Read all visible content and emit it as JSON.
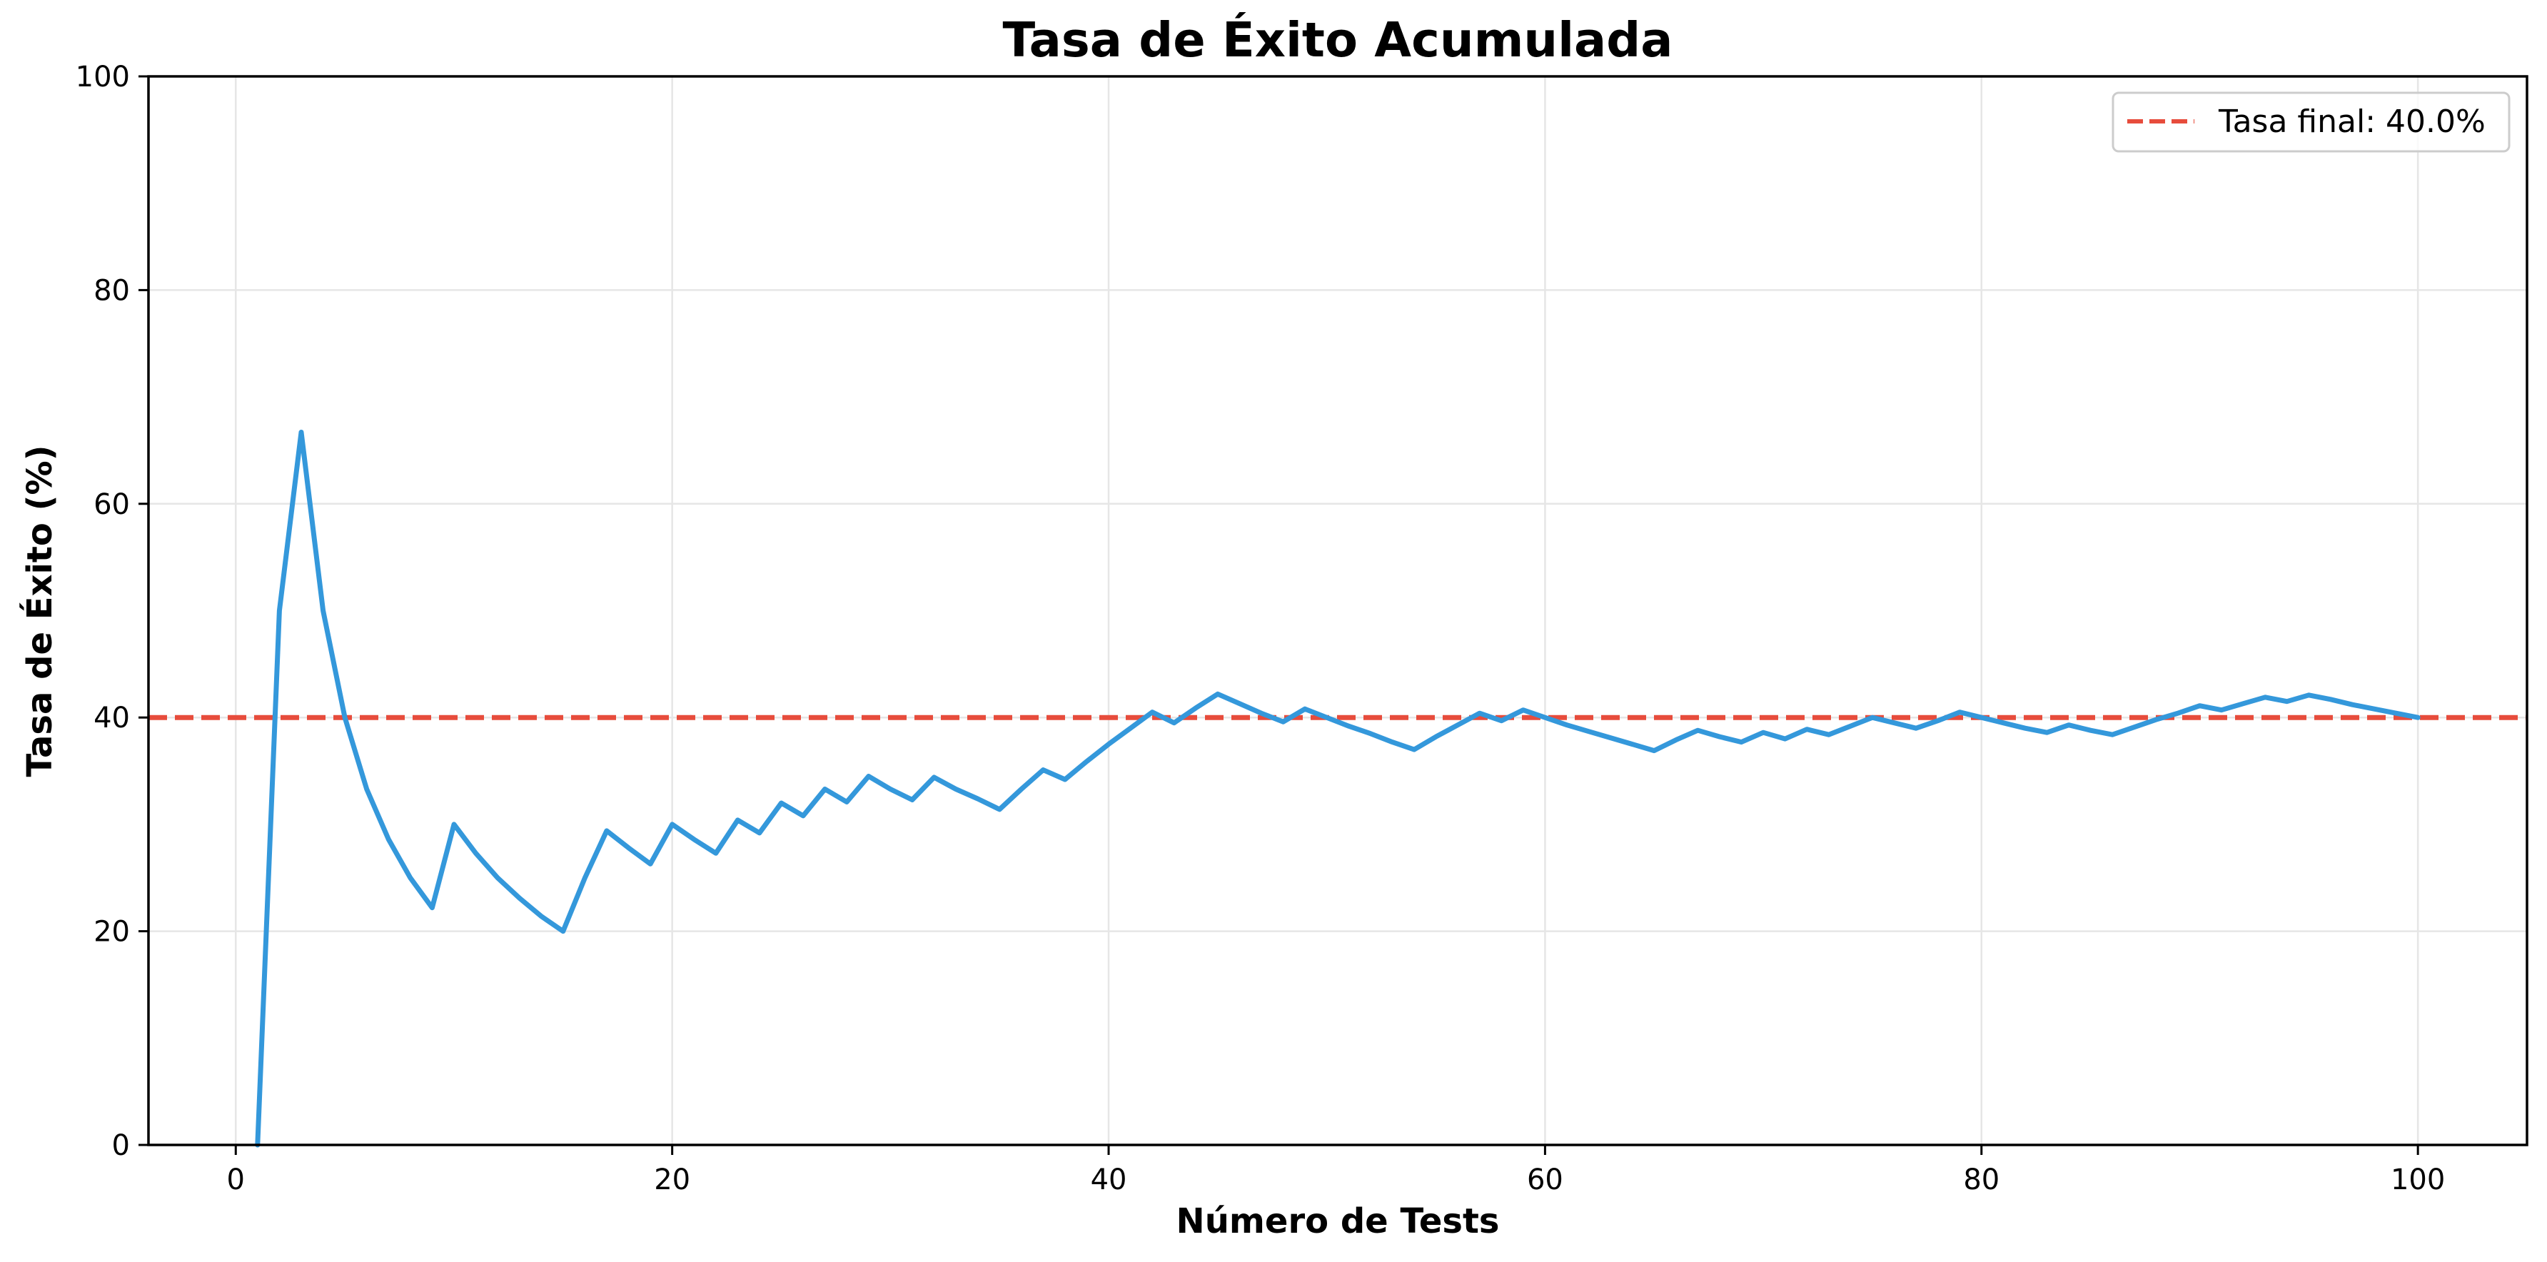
{
  "chart_data": {
    "type": "line",
    "title": "Tasa de Éxito Acumulada",
    "xlabel": "Número de Tests",
    "ylabel": "Tasa de Éxito (%)",
    "xlim": [
      -4,
      105
    ],
    "ylim": [
      0,
      100
    ],
    "xticks": [
      0,
      20,
      40,
      60,
      80,
      100
    ],
    "xtick_labels": [
      "0",
      "20",
      "40",
      "60",
      "80",
      "100"
    ],
    "yticks": [
      0,
      20,
      40,
      60,
      80,
      100
    ],
    "ytick_labels": [
      "0",
      "20",
      "40",
      "60",
      "80",
      "100"
    ],
    "grid": true,
    "legend_position": "top-right",
    "series": [
      {
        "color": "#3498db",
        "x": [
          1,
          2,
          3,
          4,
          5,
          6,
          7,
          8,
          9,
          10,
          11,
          12,
          13,
          14,
          15,
          16,
          17,
          18,
          19,
          20,
          21,
          22,
          23,
          24,
          25,
          26,
          27,
          28,
          29,
          30,
          31,
          32,
          33,
          34,
          35,
          36,
          37,
          38,
          39,
          40,
          41,
          42,
          43,
          44,
          45,
          46,
          47,
          48,
          49,
          50,
          51,
          52,
          53,
          54,
          55,
          56,
          57,
          58,
          59,
          60,
          61,
          62,
          63,
          64,
          65,
          66,
          67,
          68,
          69,
          70,
          71,
          72,
          73,
          74,
          75,
          76,
          77,
          78,
          79,
          80,
          81,
          82,
          83,
          84,
          85,
          86,
          87,
          88,
          89,
          90,
          91,
          92,
          93,
          94,
          95,
          96,
          97,
          98,
          99,
          100
        ],
        "values": [
          0,
          50,
          66.7,
          50,
          40,
          33.3,
          28.6,
          25,
          22.2,
          30,
          27.3,
          25,
          23.1,
          21.4,
          20,
          25,
          29.4,
          27.8,
          26.3,
          30,
          28.6,
          27.3,
          30.4,
          29.2,
          32,
          30.8,
          33.3,
          32.1,
          34.5,
          33.3,
          32.3,
          34.4,
          33.3,
          32.4,
          31.4,
          33.3,
          35.1,
          34.2,
          35.9,
          37.5,
          39,
          40.5,
          39.5,
          40.9,
          42.2,
          41.3,
          40.4,
          39.6,
          40.8,
          40,
          39.2,
          38.5,
          37.7,
          37,
          38.2,
          39.3,
          40.4,
          39.7,
          40.7,
          40,
          39.3,
          38.7,
          38.1,
          37.5,
          36.9,
          37.9,
          38.8,
          38.2,
          37.7,
          38.6,
          38,
          38.9,
          38.4,
          39.2,
          40,
          39.5,
          39,
          39.7,
          40.5,
          40,
          39.5,
          39,
          38.6,
          39.3,
          38.8,
          38.4,
          39.1,
          39.8,
          40.4,
          41.1,
          40.7,
          41.3,
          41.9,
          41.5,
          42.1,
          41.7,
          41.2,
          40.8,
          40.4,
          40
        ]
      }
    ],
    "reference_line": {
      "y": 40.0,
      "color": "#e74c3c",
      "style": "dashed",
      "label": "Tasa final: 40.0%"
    }
  }
}
